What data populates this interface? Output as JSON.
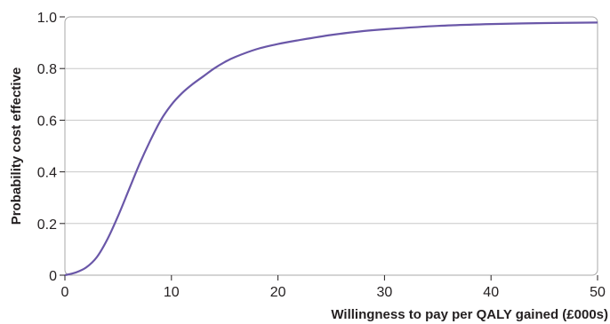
{
  "chart_data": {
    "type": "line",
    "xlabel": "Willingness to pay per QALY gained (£000s)",
    "ylabel": "Probability cost effective",
    "xlim": [
      0,
      50
    ],
    "ylim": [
      0,
      1.0
    ],
    "x_ticks": [
      0,
      10,
      20,
      30,
      40,
      50
    ],
    "x_tick_labels": [
      "0",
      "10",
      "20",
      "30",
      "40",
      "50"
    ],
    "y_ticks": [
      0,
      0.2,
      0.4,
      0.6,
      0.8,
      1.0
    ],
    "y_tick_labels": [
      "0",
      "0.2",
      "0.4",
      "0.6",
      "0.8",
      "1.0"
    ],
    "grid": "horizontal",
    "line_color": "#6a57a8",
    "series": [
      {
        "x": [
          0,
          1,
          2,
          3,
          4,
          5,
          6,
          7,
          8,
          9,
          10,
          11,
          12,
          13,
          14,
          15,
          16,
          18,
          20,
          22,
          25,
          28,
          30,
          35,
          40,
          45,
          50
        ],
        "y": [
          0,
          0.01,
          0.03,
          0.07,
          0.14,
          0.23,
          0.33,
          0.43,
          0.52,
          0.6,
          0.66,
          0.705,
          0.74,
          0.77,
          0.8,
          0.825,
          0.845,
          0.875,
          0.895,
          0.91,
          0.93,
          0.945,
          0.952,
          0.965,
          0.972,
          0.976,
          0.978
        ]
      }
    ]
  }
}
